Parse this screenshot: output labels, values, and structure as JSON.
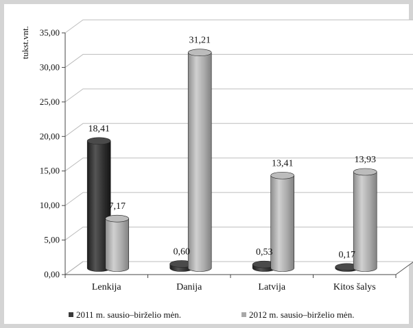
{
  "chart_data": {
    "type": "bar",
    "ylabel": "tukst.vnt.",
    "ylim": [
      0,
      35
    ],
    "ytick_step": 5,
    "yticks": [
      "0,00",
      "5,00",
      "10,00",
      "15,00",
      "20,00",
      "25,00",
      "30,00",
      "35,00"
    ],
    "categories": [
      "Lenkija",
      "Danija",
      "Latvija",
      "Kitos šalys"
    ],
    "grid": true,
    "legend_position": "bottom",
    "series": [
      {
        "name": "2011 m. sausio–birželio mėn.",
        "color": "#3a3a3a",
        "values": [
          18.41,
          0.6,
          0.53,
          0.17
        ],
        "labels": [
          "18,41",
          "0,60",
          "0,53",
          "0,17"
        ]
      },
      {
        "name": "2012 m. sausio–birželio mėn.",
        "color": "#a8a8a8",
        "values": [
          7.17,
          31.21,
          13.41,
          13.93
        ],
        "labels": [
          "7,17",
          "31,21",
          "13,41",
          "13,93"
        ]
      }
    ]
  }
}
